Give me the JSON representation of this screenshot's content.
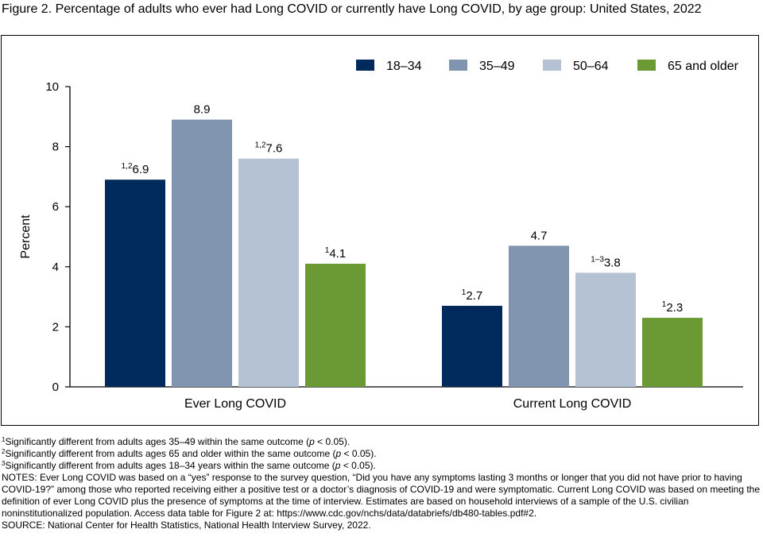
{
  "figure": {
    "title": "Figure 2. Percentage of adults who ever had Long COVID or currently have Long COVID, by age group: United States, 2022"
  },
  "chart_data": {
    "type": "bar",
    "categories": [
      "Ever Long COVID",
      "Current Long COVID"
    ],
    "series": [
      {
        "name": "18–34",
        "color": "#002a5c",
        "values": [
          6.9,
          2.7
        ],
        "flags": [
          "1,2",
          "1"
        ]
      },
      {
        "name": "35–49",
        "color": "#8194af",
        "values": [
          8.9,
          4.7
        ],
        "flags": [
          "",
          ""
        ]
      },
      {
        "name": "50–64",
        "color": "#b5c2d4",
        "values": [
          7.6,
          3.8
        ],
        "flags": [
          "1,2",
          "1–3"
        ]
      },
      {
        "name": "65 and older",
        "color": "#6b9a34",
        "values": [
          4.1,
          2.3
        ],
        "flags": [
          "1",
          "1"
        ]
      }
    ],
    "ylabel": "Percent",
    "xlabel": "",
    "ylim": [
      0,
      10
    ],
    "yticks": [
      "0",
      "2",
      "4",
      "6",
      "8",
      "10"
    ],
    "grid": false,
    "legend": "top-right"
  },
  "notes": {
    "footnote1": {
      "mark": "1",
      "text": "Significantly different from adults ages 35–49 within the same outcome (",
      "p": "p",
      "tail": " < 0.05)."
    },
    "footnote2": {
      "mark": "2",
      "text": "Significantly different from adults ages 65 and older within the same outcome (",
      "p": "p",
      "tail": " < 0.05)."
    },
    "footnote3": {
      "mark": "3",
      "text": "Significantly different from adults ages 18–34 years within the same outcome (",
      "p": "p",
      "tail": " < 0.05)."
    },
    "notes_text": "NOTES: Ever Long COVID was based on a “yes” response to the survey question, “Did you have any symptoms lasting 3 months or longer that you did not have prior to having COVID-19?” among those who reported receiving either a positive test or a doctor’s diagnosis of COVID-19 and were symptomatic. Current Long COVID was based on meeting the definition of ever Long COVID plus the presence of symptoms at the time of interview. Estimates are based on household interviews of a sample of the U.S. civilian noninstitutionalized population. Access data table for Figure 2 at: https://www.cdc.gov/nchs/data/databriefs/db480-tables.pdf#2.",
    "source_text": "SOURCE: National Center for Health Statistics, National Health Interview Survey, 2022."
  }
}
